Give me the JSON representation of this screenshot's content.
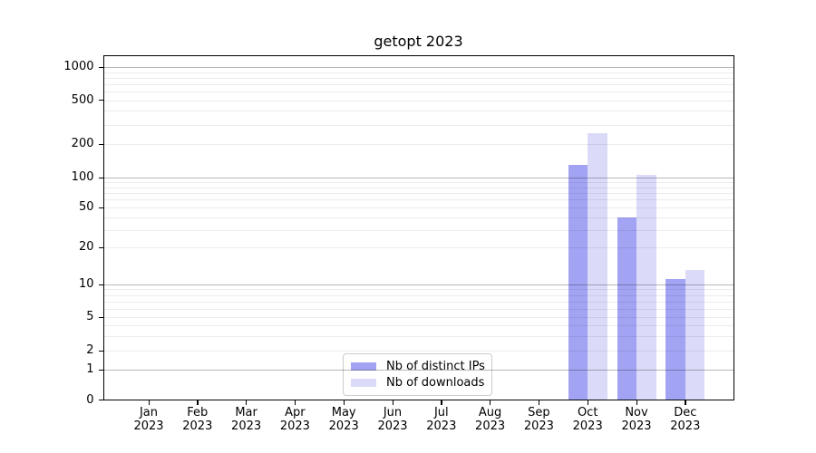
{
  "title": "getopt 2023",
  "chart_data": {
    "type": "bar",
    "categories": [
      "Jan 2023",
      "Feb 2023",
      "Mar 2023",
      "Apr 2023",
      "May 2023",
      "Jun 2023",
      "Jul 2023",
      "Aug 2023",
      "Sep 2023",
      "Oct 2023",
      "Nov 2023",
      "Dec 2023"
    ],
    "series": [
      {
        "name": "Nb of distinct IPs",
        "color": "#a3a3f4",
        "values": [
          0,
          0,
          0,
          0,
          0,
          0,
          0,
          0,
          0,
          130,
          40,
          11
        ]
      },
      {
        "name": "Nb of downloads",
        "color": "#dbdbf9",
        "values": [
          0,
          0,
          0,
          0,
          0,
          0,
          0,
          0,
          0,
          250,
          105,
          13
        ]
      }
    ],
    "ylabel": "",
    "xlabel": "",
    "y_ticks": [
      1000,
      500,
      200,
      100,
      50,
      20,
      10,
      5,
      2,
      1,
      0
    ],
    "yscale": "symlog",
    "ylim": [
      0,
      1300
    ],
    "grid": true,
    "legend_position": "lower center"
  }
}
